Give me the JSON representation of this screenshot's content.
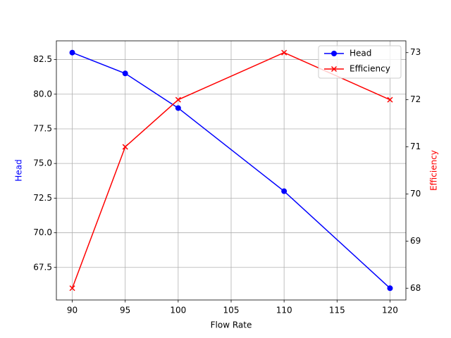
{
  "chart_data": {
    "type": "line",
    "x": [
      90,
      95,
      100,
      110,
      120
    ],
    "xlabel": "Flow Rate",
    "ylabel": "Head",
    "y2label": "Efficiency",
    "series": [
      {
        "name": "Head",
        "color": "#0000ff",
        "marker": "o",
        "axis": "y",
        "values": [
          83,
          81.5,
          79,
          73,
          66
        ]
      },
      {
        "name": "Efficiency",
        "color": "#ff0000",
        "marker": "x",
        "axis": "y2",
        "values": [
          68,
          71,
          72,
          73,
          72
        ]
      }
    ],
    "xlim": [
      88.5,
      121.5
    ],
    "xticks": [
      90,
      95,
      100,
      105,
      110,
      115,
      120
    ],
    "ylim": [
      65.15,
      83.85
    ],
    "yticks": [
      67.5,
      {
        "value": 70,
        "label": "70.0"
      },
      72.5,
      {
        "value": 75,
        "label": "75.0"
      },
      77.5,
      {
        "value": 80,
        "label": "80.0"
      },
      82.5
    ],
    "y2lim": [
      67.75,
      73.25
    ],
    "y2ticks": [
      68,
      69,
      70,
      71,
      72,
      73
    ],
    "grid": true,
    "legend": "upper right"
  }
}
